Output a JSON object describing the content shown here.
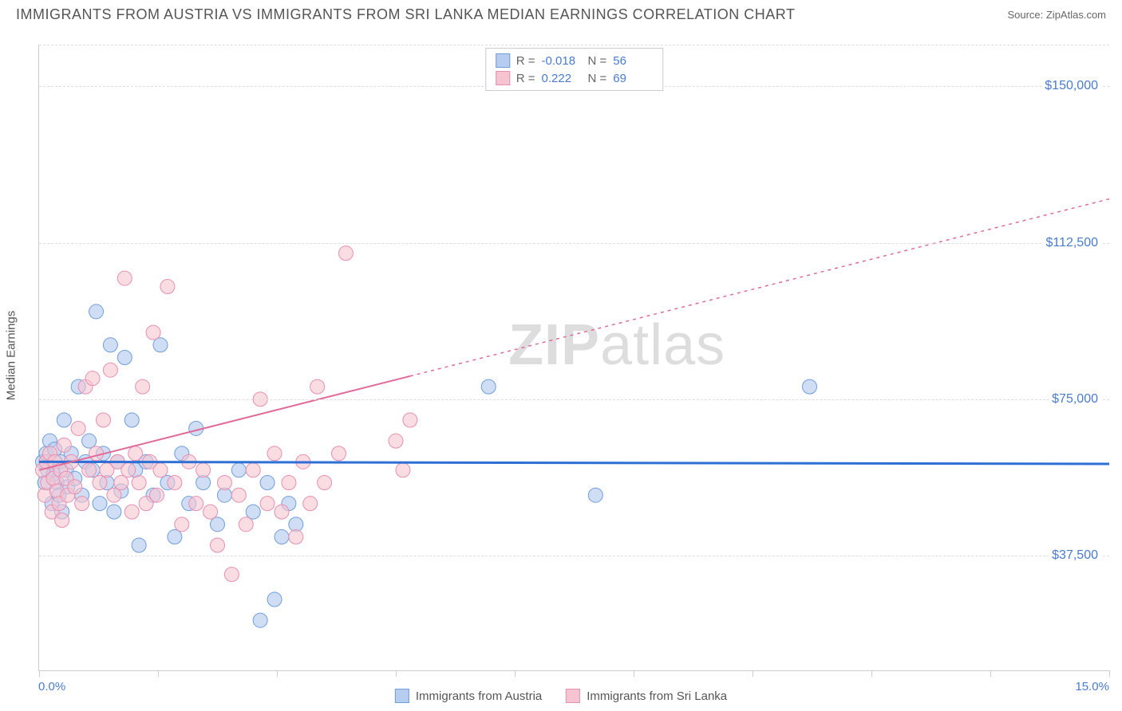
{
  "header": {
    "title": "IMMIGRANTS FROM AUSTRIA VS IMMIGRANTS FROM SRI LANKA MEDIAN EARNINGS CORRELATION CHART",
    "source": "Source: ZipAtlas.com"
  },
  "chart": {
    "type": "scatter",
    "ylabel": "Median Earnings",
    "watermark": "ZIPatlas",
    "background_color": "#ffffff",
    "grid_color": "#dddddd",
    "axis_color": "#cccccc",
    "tick_label_color": "#4a7bd0",
    "xlim": [
      0,
      15
    ],
    "ylim": [
      10000,
      160000
    ],
    "yticks": [
      37500,
      75000,
      112500,
      150000
    ],
    "ytick_labels": [
      "$37,500",
      "$75,000",
      "$112,500",
      "$150,000"
    ],
    "xtick_positions": [
      0,
      1.67,
      3.33,
      5.0,
      6.67,
      8.33,
      10.0,
      11.67,
      13.33,
      15.0
    ],
    "xmin_label": "0.0%",
    "xmax_label": "15.0%",
    "stats_box": {
      "rows": [
        {
          "r_label": "R =",
          "r_value": "-0.018",
          "n_label": "N =",
          "n_value": "56"
        },
        {
          "r_label": "R =",
          "r_value": "0.222",
          "n_label": "N =",
          "n_value": "69"
        }
      ]
    },
    "series": [
      {
        "name": "Immigrants from Austria",
        "color_fill": "#b6cdf0",
        "color_stroke": "#6f9edc",
        "line_color": "#2e6fd6",
        "line_dash": "none",
        "line_width": 3,
        "marker_radius": 9,
        "marker_opacity": 0.65,
        "trend": {
          "x1": 0,
          "y1": 60000,
          "x2": 15,
          "y2": 59500
        },
        "points": [
          [
            0.05,
            60000
          ],
          [
            0.08,
            55000
          ],
          [
            0.1,
            62000
          ],
          [
            0.12,
            58000
          ],
          [
            0.15,
            65000
          ],
          [
            0.18,
            50000
          ],
          [
            0.2,
            57000
          ],
          [
            0.22,
            63000
          ],
          [
            0.25,
            55000
          ],
          [
            0.28,
            52000
          ],
          [
            0.3,
            60000
          ],
          [
            0.32,
            48000
          ],
          [
            0.35,
            70000
          ],
          [
            0.38,
            58000
          ],
          [
            0.4,
            54000
          ],
          [
            0.45,
            62000
          ],
          [
            0.5,
            56000
          ],
          [
            0.55,
            78000
          ],
          [
            0.6,
            52000
          ],
          [
            0.65,
            60000
          ],
          [
            0.7,
            65000
          ],
          [
            0.75,
            58000
          ],
          [
            0.8,
            96000
          ],
          [
            0.85,
            50000
          ],
          [
            0.9,
            62000
          ],
          [
            0.95,
            55000
          ],
          [
            1.0,
            88000
          ],
          [
            1.05,
            48000
          ],
          [
            1.1,
            60000
          ],
          [
            1.15,
            53000
          ],
          [
            1.2,
            85000
          ],
          [
            1.3,
            70000
          ],
          [
            1.35,
            58000
          ],
          [
            1.4,
            40000
          ],
          [
            1.5,
            60000
          ],
          [
            1.6,
            52000
          ],
          [
            1.7,
            88000
          ],
          [
            1.8,
            55000
          ],
          [
            1.9,
            42000
          ],
          [
            2.0,
            62000
          ],
          [
            2.1,
            50000
          ],
          [
            2.2,
            68000
          ],
          [
            2.3,
            55000
          ],
          [
            2.5,
            45000
          ],
          [
            2.6,
            52000
          ],
          [
            2.8,
            58000
          ],
          [
            3.0,
            48000
          ],
          [
            3.1,
            22000
          ],
          [
            3.2,
            55000
          ],
          [
            3.3,
            27000
          ],
          [
            3.4,
            42000
          ],
          [
            3.5,
            50000
          ],
          [
            3.6,
            45000
          ],
          [
            6.3,
            78000
          ],
          [
            7.8,
            52000
          ],
          [
            10.8,
            78000
          ]
        ]
      },
      {
        "name": "Immigrants from Sri Lanka",
        "color_fill": "#f6c4d1",
        "color_stroke": "#e78fb0",
        "line_color": "#e06b9a",
        "line_dash": "4,5",
        "line_width": 2,
        "marker_radius": 9,
        "marker_opacity": 0.6,
        "trend": {
          "x1": 0,
          "y1": 58000,
          "x2": 15,
          "y2": 123000
        },
        "points": [
          [
            0.05,
            58000
          ],
          [
            0.08,
            52000
          ],
          [
            0.1,
            60000
          ],
          [
            0.12,
            55000
          ],
          [
            0.15,
            62000
          ],
          [
            0.18,
            48000
          ],
          [
            0.2,
            56000
          ],
          [
            0.22,
            60000
          ],
          [
            0.25,
            53000
          ],
          [
            0.28,
            50000
          ],
          [
            0.3,
            58000
          ],
          [
            0.32,
            46000
          ],
          [
            0.35,
            64000
          ],
          [
            0.38,
            56000
          ],
          [
            0.4,
            52000
          ],
          [
            0.45,
            60000
          ],
          [
            0.5,
            54000
          ],
          [
            0.55,
            68000
          ],
          [
            0.6,
            50000
          ],
          [
            0.65,
            78000
          ],
          [
            0.7,
            58000
          ],
          [
            0.75,
            80000
          ],
          [
            0.8,
            62000
          ],
          [
            0.85,
            55000
          ],
          [
            0.9,
            70000
          ],
          [
            0.95,
            58000
          ],
          [
            1.0,
            82000
          ],
          [
            1.05,
            52000
          ],
          [
            1.1,
            60000
          ],
          [
            1.15,
            55000
          ],
          [
            1.2,
            104000
          ],
          [
            1.25,
            58000
          ],
          [
            1.3,
            48000
          ],
          [
            1.35,
            62000
          ],
          [
            1.4,
            55000
          ],
          [
            1.45,
            78000
          ],
          [
            1.5,
            50000
          ],
          [
            1.55,
            60000
          ],
          [
            1.6,
            91000
          ],
          [
            1.65,
            52000
          ],
          [
            1.7,
            58000
          ],
          [
            1.8,
            102000
          ],
          [
            1.9,
            55000
          ],
          [
            2.0,
            45000
          ],
          [
            2.1,
            60000
          ],
          [
            2.2,
            50000
          ],
          [
            2.3,
            58000
          ],
          [
            2.4,
            48000
          ],
          [
            2.5,
            40000
          ],
          [
            2.6,
            55000
          ],
          [
            2.7,
            33000
          ],
          [
            2.8,
            52000
          ],
          [
            2.9,
            45000
          ],
          [
            3.0,
            58000
          ],
          [
            3.1,
            75000
          ],
          [
            3.2,
            50000
          ],
          [
            3.3,
            62000
          ],
          [
            3.4,
            48000
          ],
          [
            3.5,
            55000
          ],
          [
            3.6,
            42000
          ],
          [
            3.7,
            60000
          ],
          [
            3.8,
            50000
          ],
          [
            3.9,
            78000
          ],
          [
            4.0,
            55000
          ],
          [
            4.2,
            62000
          ],
          [
            4.3,
            110000
          ],
          [
            5.0,
            65000
          ],
          [
            5.1,
            58000
          ],
          [
            5.2,
            70000
          ]
        ]
      }
    ],
    "legend": {
      "items": [
        {
          "label": "Immigrants from Austria"
        },
        {
          "label": "Immigrants from Sri Lanka"
        }
      ]
    }
  }
}
